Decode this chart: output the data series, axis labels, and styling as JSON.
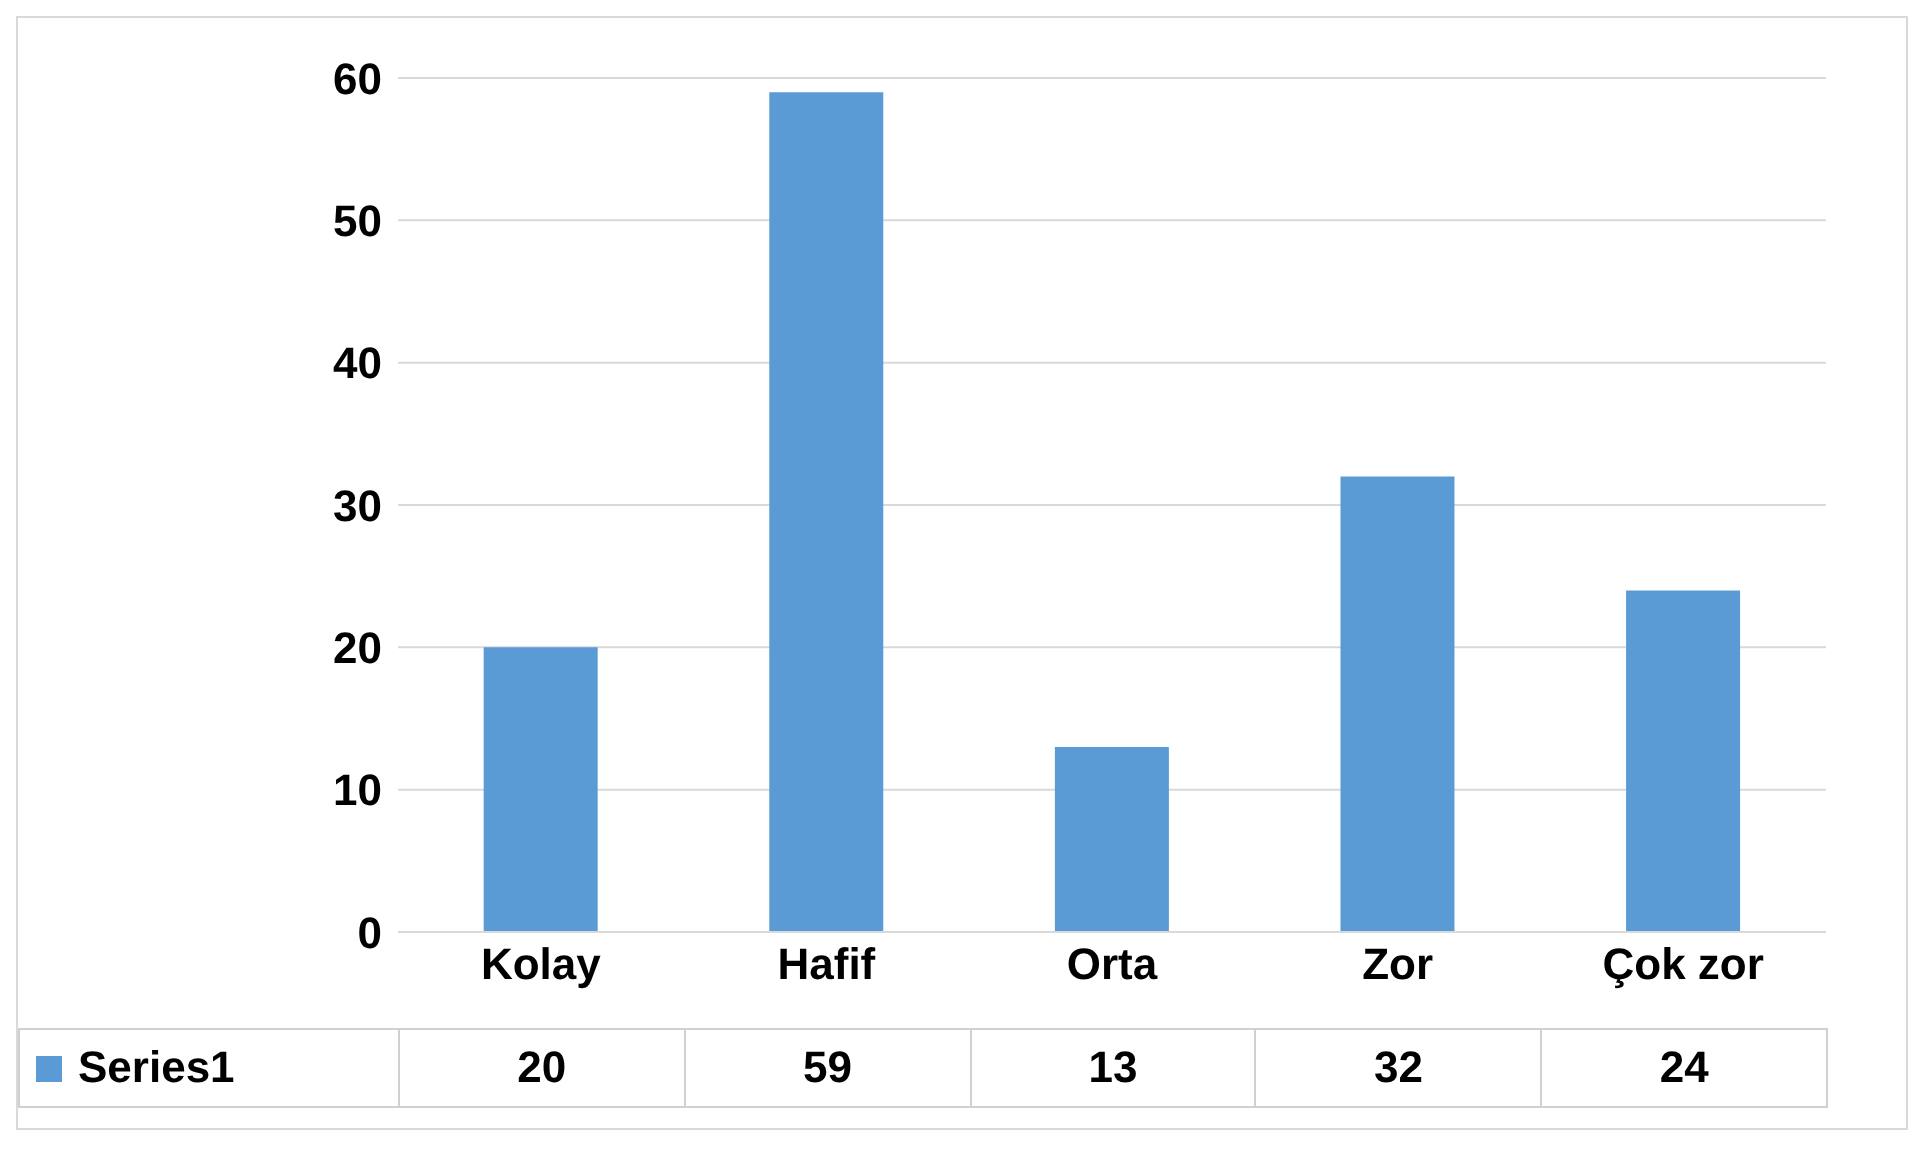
{
  "chart_data": {
    "type": "bar",
    "categories": [
      "Kolay",
      "Hafif",
      "Orta",
      "Zor",
      "Çok zor"
    ],
    "series": [
      {
        "name": "Series1",
        "color": "#5b9bd5",
        "values": [
          20,
          59,
          13,
          32,
          24
        ]
      }
    ],
    "ylim": [
      0,
      60
    ],
    "yticks": [
      0,
      10,
      20,
      30,
      40,
      50,
      60
    ],
    "grid": "y",
    "legend": "bottom left",
    "data_labels": true
  }
}
